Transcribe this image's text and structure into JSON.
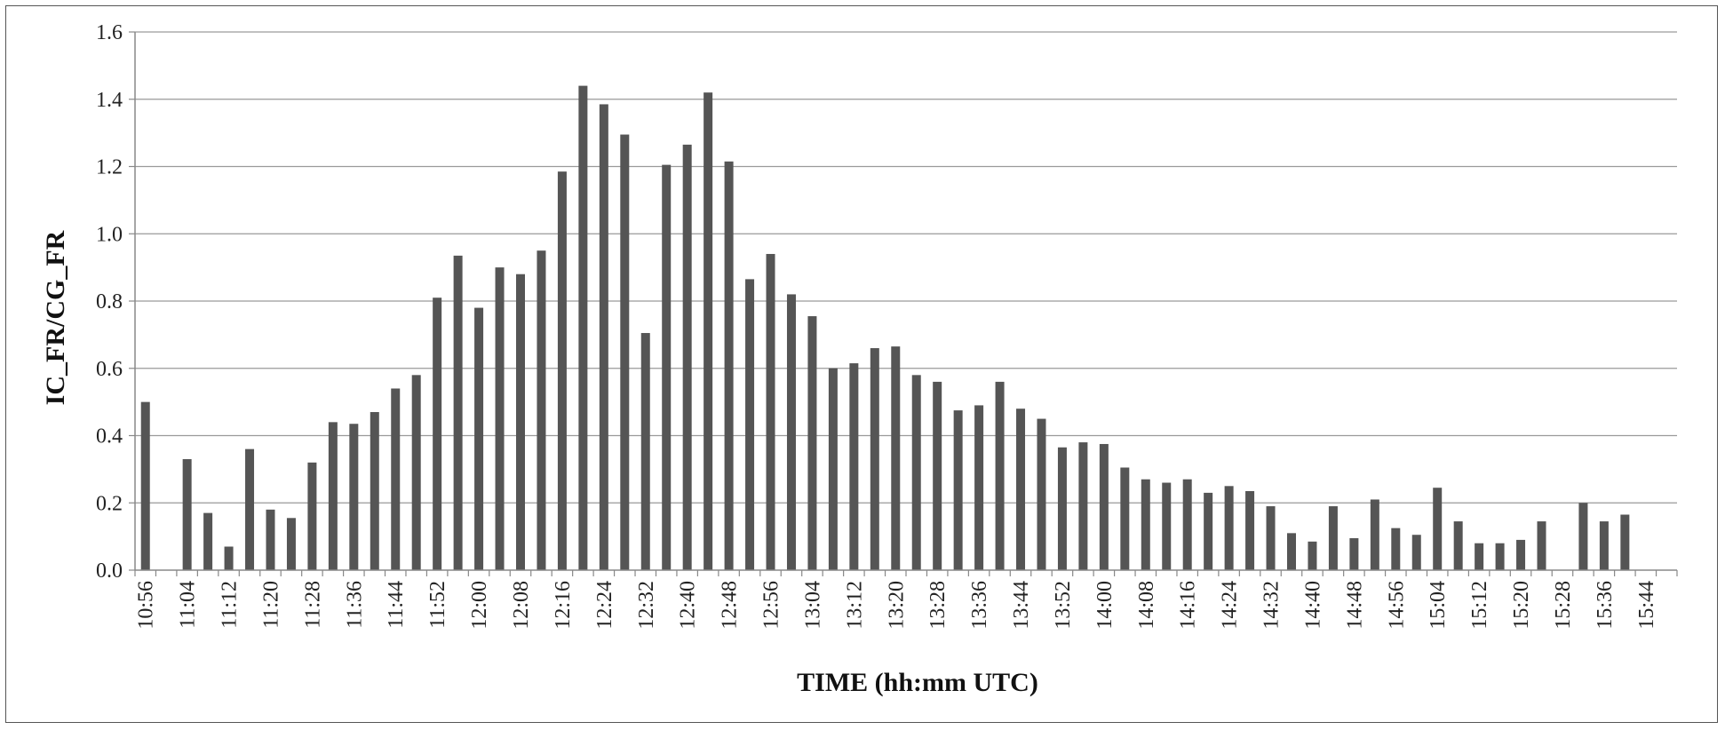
{
  "chart_data": {
    "type": "bar",
    "title": "",
    "xlabel": "TIME (hh:mm UTC)",
    "ylabel": "IC_FR/CG_FR",
    "ylim": [
      0,
      1.6
    ],
    "yticks": [
      "0.0",
      "0.2",
      "0.4",
      "0.6",
      "0.8",
      "1.0",
      "1.2",
      "1.4",
      "1.6"
    ],
    "grid": true,
    "legend": "none",
    "bar_color": "#555555",
    "categories": [
      "10:56",
      "11:00",
      "11:04",
      "11:08",
      "11:12",
      "11:16",
      "11:20",
      "11:24",
      "11:28",
      "11:32",
      "11:36",
      "11:40",
      "11:44",
      "11:48",
      "11:52",
      "11:56",
      "12:00",
      "12:04",
      "12:08",
      "12:12",
      "12:16",
      "12:20",
      "12:24",
      "12:28",
      "12:32",
      "12:36",
      "12:40",
      "12:44",
      "12:48",
      "12:52",
      "12:56",
      "13:00",
      "13:04",
      "13:08",
      "13:12",
      "13:16",
      "13:20",
      "13:24",
      "13:28",
      "13:32",
      "13:36",
      "13:40",
      "13:44",
      "13:48",
      "13:52",
      "13:56",
      "14:00",
      "14:04",
      "14:08",
      "14:12",
      "14:16",
      "14:20",
      "14:24",
      "14:28",
      "14:32",
      "14:36",
      "14:40",
      "14:44",
      "14:48",
      "14:52",
      "14:56",
      "15:00",
      "15:04",
      "15:08",
      "15:12",
      "15:16",
      "15:20",
      "15:24",
      "15:28",
      "15:32",
      "15:36",
      "15:40",
      "15:44",
      "15:48"
    ],
    "xtick_labels": [
      "10:56",
      "11:04",
      "11:12",
      "11:20",
      "11:28",
      "11:36",
      "11:44",
      "11:52",
      "12:00",
      "12:08",
      "12:16",
      "12:24",
      "12:32",
      "12:40",
      "12:48",
      "12:56",
      "13:04",
      "13:12",
      "13:20",
      "13:28",
      "13:36",
      "13:44",
      "13:52",
      "14:00",
      "14:08",
      "14:16",
      "14:24",
      "14:32",
      "14:40",
      "14:48",
      "14:56",
      "15:04",
      "15:12",
      "15:20",
      "15:28",
      "15:36",
      "15:44"
    ],
    "values": [
      0.5,
      0,
      0.33,
      0.17,
      0.07,
      0.36,
      0.18,
      0.155,
      0.32,
      0.44,
      0.435,
      0.47,
      0.54,
      0.58,
      0.81,
      0.935,
      0.78,
      0.9,
      0.88,
      0.95,
      1.185,
      1.44,
      1.385,
      1.295,
      0.705,
      1.205,
      1.265,
      1.42,
      1.215,
      0.865,
      0.94,
      0.82,
      0.755,
      0.6,
      0.615,
      0.66,
      0.665,
      0.58,
      0.56,
      0.475,
      0.49,
      0.56,
      0.48,
      0.45,
      0.365,
      0.38,
      0.375,
      0.305,
      0.27,
      0.26,
      0.27,
      0.23,
      0.25,
      0.235,
      0.19,
      0.11,
      0.085,
      0.19,
      0.095,
      0.21,
      0.125,
      0.105,
      0.245,
      0.145,
      0.08,
      0.08,
      0.09,
      0.145,
      0,
      0.2,
      0.145,
      0.165,
      0,
      0
    ]
  }
}
